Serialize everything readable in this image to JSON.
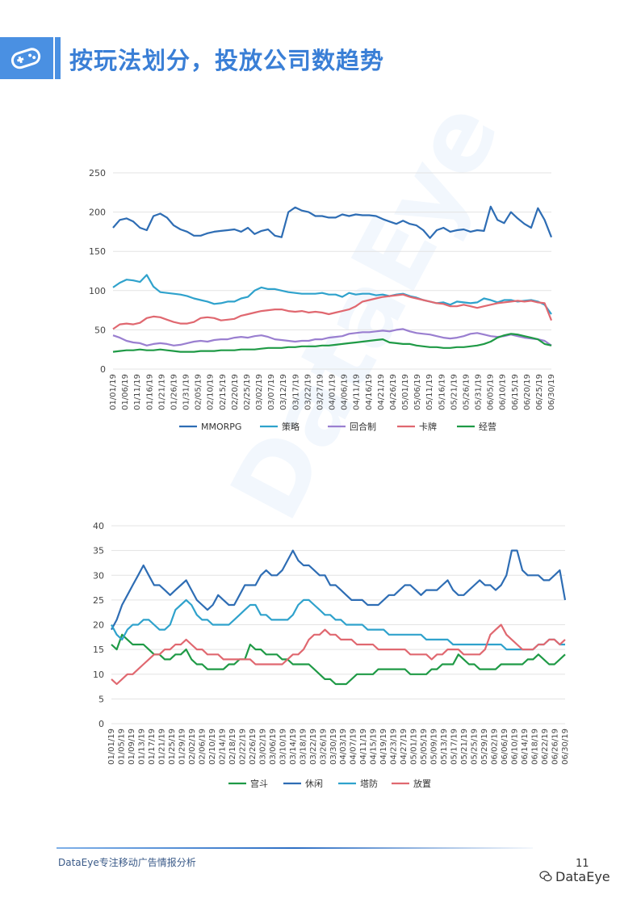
{
  "header": {
    "title": "按玩法划分，投放公司数趋势",
    "icon": "gamepad-icon"
  },
  "watermark": "DataEye",
  "footer": {
    "text": "DataEye专注移动广告情报分析",
    "page_number": "11",
    "brand": "DataEye",
    "brand_icon": "wechat-icon"
  },
  "chart_data": [
    {
      "type": "line",
      "ylim": [
        0,
        250
      ],
      "yticks": [
        0,
        50,
        100,
        150,
        200,
        250
      ],
      "xticks": [
        "01/01/19",
        "01/06/19",
        "01/11/19",
        "01/16/19",
        "01/21/19",
        "01/26/19",
        "01/31/19",
        "02/05/19",
        "02/10/19",
        "02/15/19",
        "02/20/19",
        "02/25/19",
        "03/02/19",
        "03/07/19",
        "03/12/19",
        "03/17/19",
        "03/22/19",
        "03/27/19",
        "04/01/19",
        "04/06/19",
        "04/11/19",
        "04/16/19",
        "04/21/19",
        "04/26/19",
        "05/01/19",
        "05/06/19",
        "05/11/19",
        "05/16/19",
        "05/21/19",
        "05/26/19",
        "05/31/19",
        "06/05/19",
        "06/10/19",
        "06/15/19",
        "06/20/19",
        "06/25/19",
        "06/30/19"
      ],
      "legend_position": "bottom",
      "series": [
        {
          "name": "MMORPG",
          "color": "#2e6db4",
          "values": [
            180,
            190,
            192,
            188,
            180,
            177,
            195,
            198,
            193,
            183,
            178,
            175,
            170,
            170,
            173,
            175,
            176,
            177,
            178,
            175,
            180,
            172,
            176,
            178,
            170,
            168,
            200,
            206,
            202,
            200,
            195,
            195,
            193,
            193,
            197,
            195,
            197,
            196,
            196,
            195,
            191,
            188,
            185,
            189,
            185,
            183,
            177,
            167,
            177,
            180,
            175,
            177,
            178,
            175,
            177,
            176,
            207,
            190,
            186,
            200,
            192,
            185,
            180,
            205,
            190,
            168
          ]
        },
        {
          "name": "策略",
          "color": "#2fa2cc",
          "values": [
            104,
            110,
            114,
            113,
            111,
            120,
            105,
            98,
            97,
            96,
            95,
            93,
            90,
            88,
            86,
            83,
            84,
            86,
            86,
            90,
            92,
            100,
            104,
            102,
            102,
            100,
            98,
            97,
            96,
            96,
            96,
            97,
            95,
            95,
            92,
            97,
            95,
            96,
            96,
            94,
            95,
            93,
            95,
            96,
            93,
            91,
            88,
            86,
            84,
            85,
            82,
            86,
            85,
            84,
            85,
            90,
            88,
            85,
            88,
            88,
            86,
            87,
            88,
            86,
            82,
            70
          ]
        },
        {
          "name": "回合制",
          "color": "#9a7fd0",
          "values": [
            43,
            40,
            36,
            34,
            33,
            30,
            32,
            33,
            32,
            30,
            31,
            33,
            35,
            36,
            35,
            37,
            38,
            38,
            40,
            41,
            40,
            42,
            43,
            41,
            38,
            37,
            36,
            35,
            36,
            36,
            38,
            38,
            40,
            41,
            42,
            45,
            46,
            47,
            47,
            48,
            49,
            48,
            50,
            51,
            48,
            46,
            45,
            44,
            42,
            40,
            39,
            40,
            42,
            45,
            46,
            44,
            42,
            41,
            42,
            44,
            42,
            40,
            39,
            38,
            36,
            30
          ]
        },
        {
          "name": "卡牌",
          "color": "#e06870",
          "values": [
            51,
            57,
            58,
            57,
            59,
            65,
            67,
            66,
            63,
            60,
            58,
            58,
            60,
            65,
            66,
            65,
            62,
            63,
            64,
            68,
            70,
            72,
            74,
            75,
            76,
            76,
            74,
            73,
            74,
            72,
            73,
            72,
            70,
            72,
            74,
            76,
            80,
            86,
            88,
            90,
            92,
            93,
            94,
            95,
            92,
            90,
            88,
            86,
            84,
            83,
            80,
            80,
            82,
            80,
            78,
            80,
            82,
            84,
            85,
            86,
            87,
            86,
            87,
            85,
            84,
            62
          ]
        },
        {
          "name": "经营",
          "color": "#1f9a46",
          "values": [
            22,
            23,
            24,
            24,
            25,
            24,
            24,
            25,
            24,
            23,
            22,
            22,
            22,
            23,
            23,
            23,
            24,
            24,
            24,
            25,
            25,
            25,
            26,
            27,
            27,
            27,
            28,
            28,
            29,
            29,
            29,
            30,
            30,
            31,
            32,
            33,
            34,
            35,
            36,
            37,
            38,
            34,
            33,
            32,
            32,
            30,
            29,
            28,
            28,
            27,
            27,
            28,
            28,
            29,
            30,
            32,
            35,
            40,
            43,
            45,
            44,
            42,
            40,
            38,
            32,
            30
          ]
        }
      ]
    },
    {
      "type": "line",
      "ylim": [
        0,
        40
      ],
      "yticks": [
        0,
        5,
        10,
        15,
        20,
        25,
        30,
        35,
        40
      ],
      "xticks": [
        "01/01/19",
        "01/05/19",
        "01/09/19",
        "01/13/19",
        "01/17/19",
        "01/21/19",
        "01/25/19",
        "01/29/19",
        "02/02/19",
        "02/06/19",
        "02/10/19",
        "02/14/19",
        "02/18/19",
        "02/22/19",
        "02/26/19",
        "03/02/19",
        "03/06/19",
        "03/10/19",
        "03/14/19",
        "03/18/19",
        "03/22/19",
        "03/26/19",
        "03/30/19",
        "04/03/19",
        "04/07/19",
        "04/11/19",
        "04/15/19",
        "04/19/19",
        "04/23/19",
        "04/27/19",
        "05/01/19",
        "05/05/19",
        "05/09/19",
        "05/13/19",
        "05/17/19",
        "05/21/19",
        "05/25/19",
        "05/29/19",
        "06/02/19",
        "06/06/19",
        "06/10/19",
        "06/14/19",
        "06/18/19",
        "06/22/19",
        "06/26/19",
        "06/30/19"
      ],
      "legend_position": "bottom",
      "series": [
        {
          "name": "宫斗",
          "color": "#1f9a46",
          "values": [
            16,
            15,
            18,
            17,
            16,
            16,
            16,
            15,
            14,
            14,
            13,
            13,
            14,
            14,
            15,
            13,
            12,
            12,
            11,
            11,
            11,
            11,
            12,
            12,
            13,
            13,
            16,
            15,
            15,
            14,
            14,
            14,
            13,
            13,
            12,
            12,
            12,
            12,
            11,
            10,
            9,
            9,
            8,
            8,
            8,
            9,
            10,
            10,
            10,
            10,
            11,
            11,
            11,
            11,
            11,
            11,
            10,
            10,
            10,
            10,
            11,
            11,
            12,
            12,
            12,
            14,
            13,
            12,
            12,
            11,
            11,
            11,
            11,
            12,
            12,
            12,
            12,
            12,
            13,
            13,
            14,
            13,
            12,
            12,
            13,
            14
          ]
        },
        {
          "name": "休闲",
          "color": "#2e6db4",
          "values": [
            19,
            21,
            24,
            26,
            28,
            30,
            32,
            30,
            28,
            28,
            27,
            26,
            27,
            28,
            29,
            27,
            25,
            24,
            23,
            24,
            26,
            25,
            24,
            24,
            26,
            28,
            28,
            28,
            30,
            31,
            30,
            30,
            31,
            33,
            35,
            33,
            32,
            32,
            31,
            30,
            30,
            28,
            28,
            27,
            26,
            25,
            25,
            25,
            24,
            24,
            24,
            25,
            26,
            26,
            27,
            28,
            28,
            27,
            26,
            27,
            27,
            27,
            28,
            29,
            27,
            26,
            26,
            27,
            28,
            29,
            28,
            28,
            27,
            28,
            30,
            35,
            35,
            31,
            30,
            30,
            30,
            29,
            29,
            30,
            31,
            25
          ]
        },
        {
          "name": "塔防",
          "color": "#2fa2cc",
          "values": [
            20,
            18,
            17,
            19,
            20,
            20,
            21,
            21,
            20,
            19,
            19,
            20,
            23,
            24,
            25,
            24,
            22,
            21,
            21,
            20,
            20,
            20,
            20,
            21,
            22,
            23,
            24,
            24,
            22,
            22,
            21,
            21,
            21,
            21,
            22,
            24,
            25,
            25,
            24,
            23,
            22,
            22,
            21,
            21,
            20,
            20,
            20,
            20,
            19,
            19,
            19,
            19,
            18,
            18,
            18,
            18,
            18,
            18,
            18,
            17,
            17,
            17,
            17,
            17,
            16,
            16,
            16,
            16,
            16,
            16,
            16,
            16,
            16,
            16,
            15,
            15,
            15,
            15,
            15,
            15,
            16,
            16,
            17,
            17,
            16,
            16
          ]
        },
        {
          "name": "放置",
          "color": "#e06870",
          "values": [
            9,
            8,
            9,
            10,
            10,
            11,
            12,
            13,
            14,
            14,
            15,
            15,
            16,
            16,
            17,
            16,
            15,
            15,
            14,
            14,
            14,
            13,
            13,
            13,
            13,
            13,
            13,
            12,
            12,
            12,
            12,
            12,
            12,
            13,
            14,
            14,
            15,
            17,
            18,
            18,
            19,
            18,
            18,
            17,
            17,
            17,
            16,
            16,
            16,
            16,
            15,
            15,
            15,
            15,
            15,
            15,
            14,
            14,
            14,
            14,
            13,
            14,
            14,
            15,
            15,
            15,
            14,
            14,
            14,
            14,
            15,
            18,
            19,
            20,
            18,
            17,
            16,
            15,
            15,
            15,
            16,
            16,
            17,
            17,
            16,
            17
          ]
        }
      ]
    }
  ]
}
